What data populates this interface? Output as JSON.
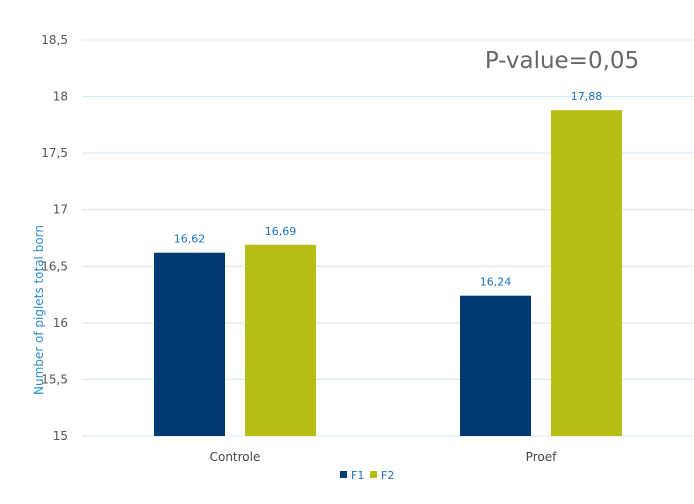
{
  "chart_data": {
    "type": "bar",
    "categories": [
      "Controle",
      "Proef"
    ],
    "series": [
      {
        "name": "F1",
        "values": [
          16.62,
          16.24
        ],
        "labels": [
          "16,62",
          "16,24"
        ]
      },
      {
        "name": "F2",
        "values": [
          16.69,
          17.88
        ],
        "labels": [
          "16,69",
          "17,88"
        ]
      }
    ],
    "ylabel": "Number of piglets total born",
    "xlabel": "",
    "ylim": [
      15,
      18.5
    ],
    "yticks": [
      15,
      15.5,
      16,
      16.5,
      17,
      17.5,
      18,
      18.5
    ],
    "ytick_labels": [
      "15",
      "15,5",
      "16",
      "16,5",
      "17",
      "17,5",
      "18",
      "18,5"
    ],
    "annotation": "P-value=0,05",
    "grid": true,
    "legend_position": "bottom-center",
    "colors": {
      "F1": "#003a70",
      "F2": "#b5be12",
      "data_label": "#1a73b8",
      "axis_label": "#2a8ed0",
      "gridline": "#d3e4ee"
    }
  }
}
